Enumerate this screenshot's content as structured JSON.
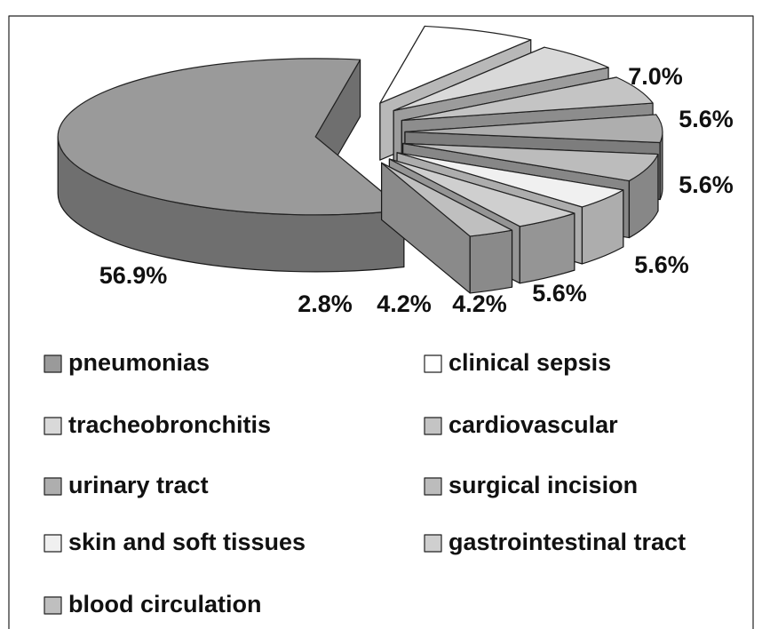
{
  "chart_data": {
    "type": "pie",
    "categories": [
      "pneumonias",
      "clinical sepsis",
      "tracheobronchitis",
      "cardiovascular",
      "urinary tract",
      "surgical incision",
      "skin and soft tissues",
      "gastrointestinal tract",
      "blood circulation"
    ],
    "values": [
      56.9,
      7.0,
      5.6,
      5.6,
      5.6,
      5.6,
      4.2,
      4.2,
      2.8
    ],
    "value_labels": [
      "56.9%",
      "7.0%",
      "5.6%",
      "5.6%",
      "5.6%",
      "5.6%",
      "4.2%",
      "4.2%",
      "2.8%"
    ],
    "colors": [
      "#9a9a9a",
      "#ffffff",
      "#d9d9d9",
      "#c4c4c4",
      "#aeaeae",
      "#bcbcbc",
      "#f0f0f0",
      "#cfcfcf",
      "#bfbfbf"
    ],
    "legend": "bottom"
  }
}
